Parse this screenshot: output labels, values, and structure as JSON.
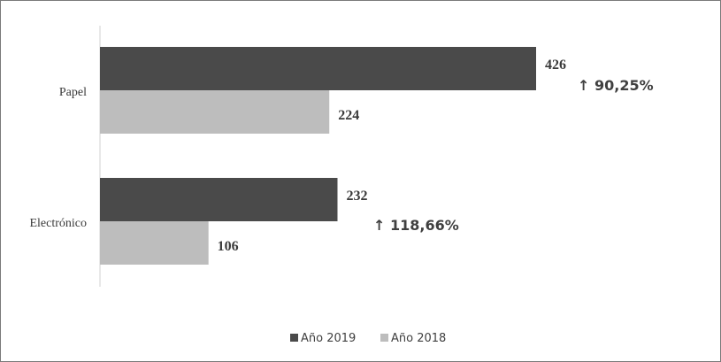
{
  "chart_data": {
    "type": "bar",
    "orientation": "horizontal",
    "categories": [
      "Papel",
      "Electrónico"
    ],
    "series": [
      {
        "name": "Año 2019",
        "values": [
          426,
          232
        ],
        "color": "#4a4a4a"
      },
      {
        "name": "Año 2018",
        "values": [
          224,
          106
        ],
        "color": "#bdbdbd"
      }
    ],
    "annotations": [
      "↑ 90,25%",
      "↑ 118,66%"
    ],
    "xlim": [
      0,
      426
    ],
    "grid": false,
    "legend_position": "bottom"
  }
}
